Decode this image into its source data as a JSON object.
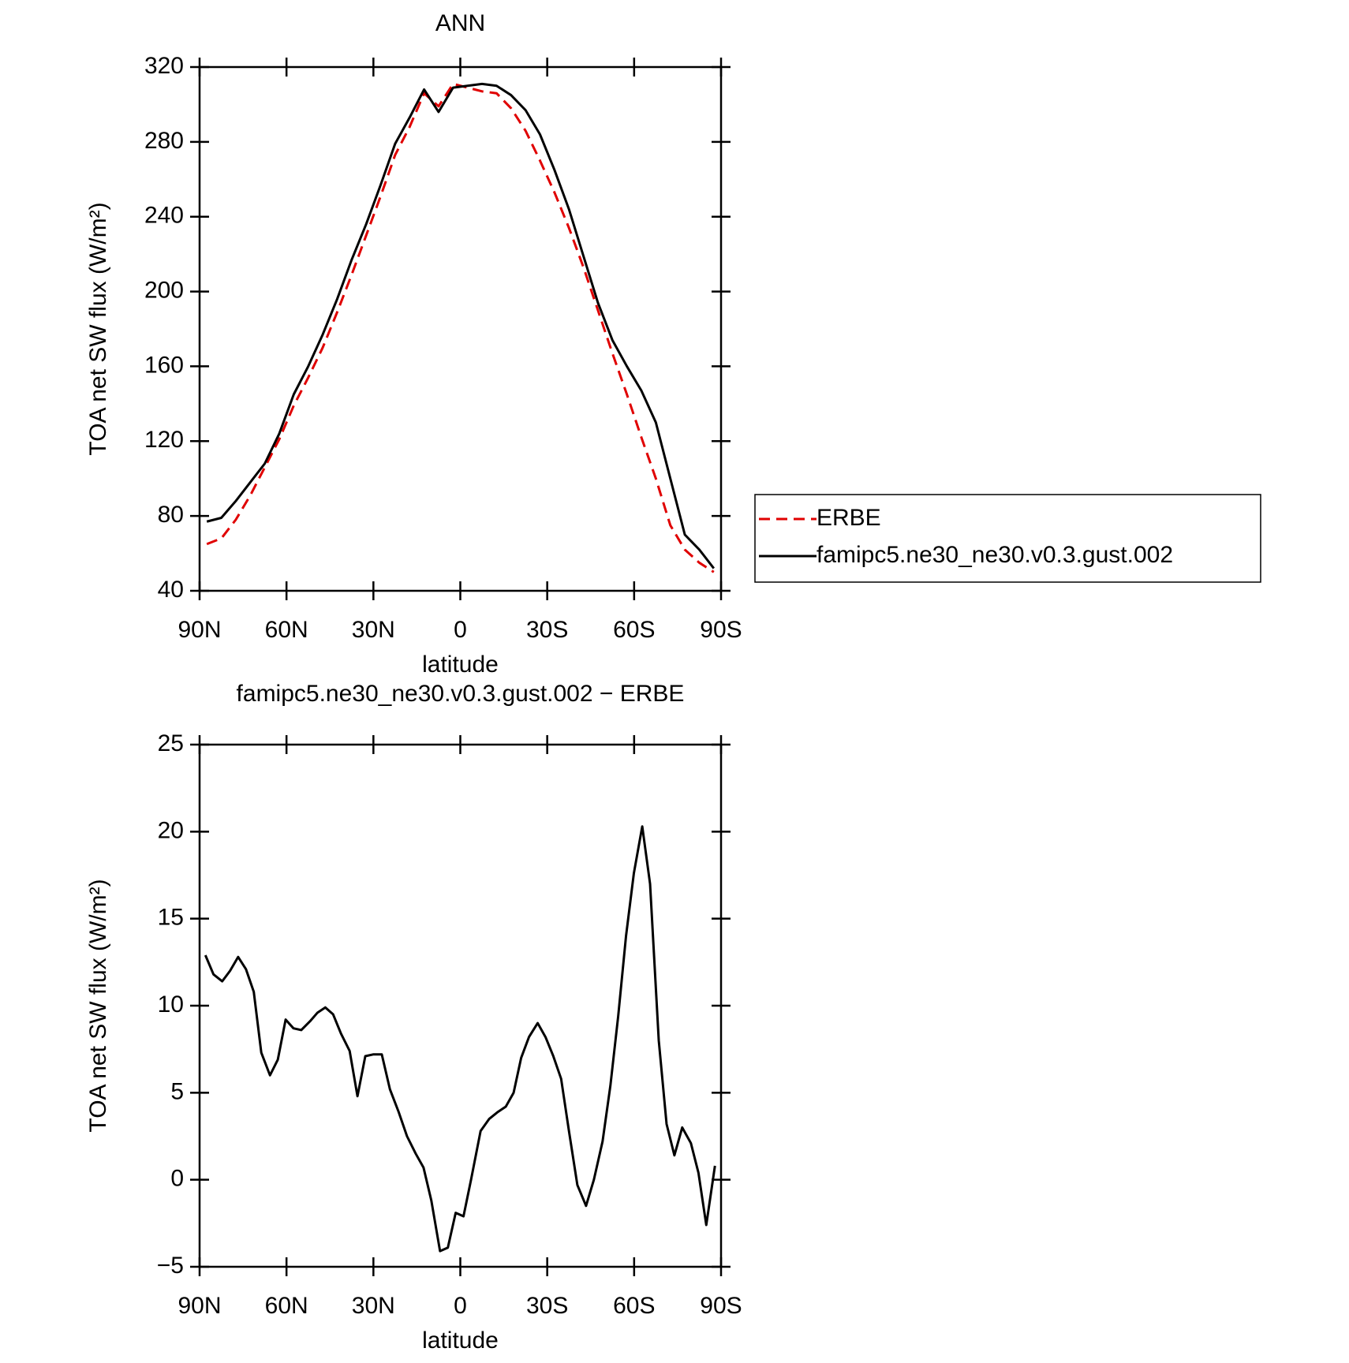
{
  "chart_data": [
    {
      "type": "line",
      "title": "ANN",
      "x_label": "latitude",
      "y_label": "TOA net SW flux (W/m²)",
      "xlim": [
        90,
        -90
      ],
      "xticks": [
        {
          "value": 90,
          "label": "90N"
        },
        {
          "value": 60,
          "label": "60N"
        },
        {
          "value": 30,
          "label": "30N"
        },
        0,
        {
          "value": -30,
          "label": "30S"
        },
        {
          "value": -60,
          "label": "60S"
        },
        {
          "value": -90,
          "label": "90S"
        }
      ],
      "ylim": [
        40,
        320
      ],
      "yticks": [
        40,
        80,
        120,
        160,
        200,
        240,
        280,
        320
      ],
      "legend": "right",
      "x": [
        87.5,
        82.5,
        77.5,
        72.5,
        67.5,
        62.5,
        57.5,
        52.5,
        47.5,
        42.5,
        37.5,
        32.5,
        27.5,
        22.5,
        17.5,
        12.5,
        7.5,
        2.5,
        -2.5,
        -7.5,
        -12.5,
        -17.5,
        -22.5,
        -27.5,
        -32.5,
        -37.5,
        -42.5,
        -47.5,
        -52.5,
        -57.5,
        -62.5,
        -67.5,
        -72.5,
        -77.5,
        -82.5,
        -87.5
      ],
      "series": [
        {
          "name": "ERBE",
          "color": "#e00000",
          "style": "dashed",
          "values": [
            65,
            68,
            78,
            91,
            106,
            121,
            139,
            154,
            170,
            189,
            209,
            230,
            251,
            273,
            288,
            306,
            299,
            311,
            309,
            307,
            306,
            298,
            286,
            270,
            253,
            234,
            213,
            190,
            167,
            145,
            122,
            100,
            75,
            62,
            55,
            50
          ]
        },
        {
          "name": "famipc5.ne30_ne30.v0.3.gust.002",
          "color": "#000000",
          "style": "solid",
          "values": [
            77,
            79,
            88,
            98,
            108,
            124,
            145,
            160,
            177,
            196,
            217,
            236,
            257,
            279,
            293,
            308,
            296,
            309,
            310,
            311,
            310,
            305,
            297,
            284,
            265,
            244,
            219,
            194,
            174,
            160,
            147,
            130,
            100,
            70,
            62,
            52
          ]
        }
      ]
    },
    {
      "type": "line",
      "title": "famipc5.ne30_ne30.v0.3.gust.002 − ERBE",
      "x_label": "latitude",
      "y_label": "TOA net SW flux (W/m²)",
      "xlim": [
        90,
        -90
      ],
      "xticks": [
        {
          "value": 90,
          "label": "90N"
        },
        {
          "value": 60,
          "label": "60N"
        },
        {
          "value": 30,
          "label": "30N"
        },
        0,
        {
          "value": -30,
          "label": "30S"
        },
        {
          "value": -60,
          "label": "60S"
        },
        {
          "value": -90,
          "label": "90S"
        }
      ],
      "ylim": [
        -5,
        25
      ],
      "yticks": [
        {
          "value": -5,
          "label": "−5"
        },
        0,
        5,
        10,
        15,
        20,
        25
      ],
      "x": [
        88,
        85.2,
        82.2,
        79.5,
        76.7,
        74,
        71.3,
        68.7,
        65.7,
        63,
        60.3,
        57.6,
        54.9,
        51.9,
        49.3,
        46.6,
        43.9,
        41.2,
        38.2,
        35.5,
        32.8,
        30.1,
        27.1,
        24.3,
        21.3,
        18.4,
        15.4,
        12.7,
        10,
        7,
        4.3,
        1.6,
        -1.1,
        -3.7,
        -7,
        -10,
        -13,
        -15.7,
        -18.4,
        -21,
        -23.7,
        -26.7,
        -29.4,
        -32.1,
        -34.8,
        -37.5,
        -40.4,
        -43.4,
        -46.1,
        -49.1,
        -51.8,
        -54.5,
        -57.2,
        -59.9,
        -62.8,
        -65.5,
        -68.5,
        -71.2,
        -73.9,
        -76.6,
        -79.6,
        -82.2,
        -84.9,
        -87.9
      ],
      "series": [
        {
          "color": "#000000",
          "style": "solid",
          "values": [
            12.9,
            11.8,
            11.4,
            12.0,
            12.8,
            12.1,
            10.8,
            7.3,
            6.0,
            6.9,
            9.2,
            8.7,
            8.6,
            9.1,
            9.6,
            9.9,
            9.5,
            8.4,
            7.4,
            4.8,
            7.1,
            7.2,
            7.2,
            5.2,
            3.9,
            2.5,
            1.5,
            0.7,
            -1.2,
            -4.1,
            -3.9,
            -1.9,
            -2.1,
            0,
            2.8,
            3.5,
            3.9,
            4.2,
            5.0,
            7.0,
            8.2,
            9.0,
            8.2,
            7.1,
            5.8,
            2.8,
            -0.3,
            -1.5,
            0,
            2.2,
            5.4,
            9.4,
            14.0,
            17.6,
            20.3,
            17.0,
            8.0,
            3.2,
            1.4,
            3.0,
            2.1,
            0.4,
            -2.6,
            0.8
          ]
        }
      ]
    }
  ]
}
